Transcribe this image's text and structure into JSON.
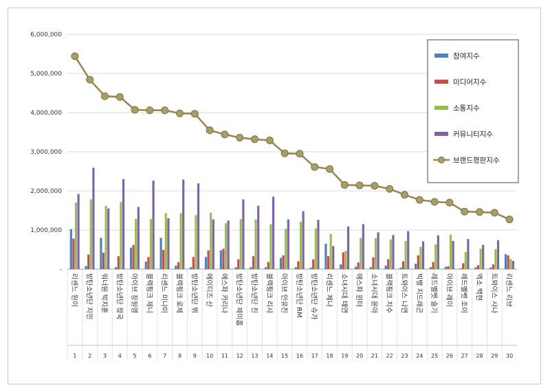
{
  "chart_data": {
    "type": "bar",
    "ylim": [
      0,
      6000000
    ],
    "yticks": [
      "-",
      "1,000,000",
      "2,000,000",
      "3,000,000",
      "4,000,000",
      "5,000,000",
      "6,000,000"
    ],
    "ytick_values": [
      0,
      1000000,
      2000000,
      3000000,
      4000000,
      5000000,
      6000000
    ],
    "grid": true,
    "legend_position": "top-right",
    "indices": [
      "1",
      "2",
      "3",
      "4",
      "5",
      "6",
      "7",
      "8",
      "9",
      "10",
      "11",
      "12",
      "13",
      "14",
      "15",
      "16",
      "17",
      "18",
      "19",
      "20",
      "21",
      "22",
      "23",
      "24",
      "25",
      "26",
      "27",
      "28",
      "29",
      "30"
    ],
    "categories": [
      "리센느 원이",
      "방탄소년단 지민",
      "워너원 박지훈",
      "방탄소년단 정국",
      "아이브 장원영",
      "블랙핑크 제니",
      "리센느 미나미",
      "블랙핑크 로제",
      "방탄소년단 뷔",
      "에이티즈 산",
      "에스파 카리나",
      "방탄소년단 제이홉",
      "방탄소년단 진",
      "블랙핑크 리사",
      "아이브 안유진",
      "방탄소년단 RM",
      "방탄소년단 슈가",
      "리센느 제나",
      "소녀시대 태연",
      "에스파 윈터",
      "소녀시대 윤아",
      "블랙핑크 지수",
      "트와이스 나연",
      "빅뱅 지드래곤",
      "레드벨벳 슬기",
      "아이브 레이",
      "레드벨벳 조이",
      "엑소 백현",
      "트와이스 사나",
      "리센느 리브"
    ],
    "series": [
      {
        "name": "참여지수",
        "color": "#4f81bd",
        "values": [
          1020000,
          80000,
          800000,
          50000,
          550000,
          190000,
          800000,
          90000,
          50000,
          310000,
          480000,
          50000,
          50000,
          50000,
          290000,
          50000,
          40000,
          650000,
          120000,
          60000,
          50000,
          90000,
          40000,
          140000,
          50000,
          60000,
          20000,
          50000,
          40000,
          380000
        ]
      },
      {
        "name": "미디어지수",
        "color": "#c0504d",
        "values": [
          780000,
          370000,
          420000,
          330000,
          620000,
          310000,
          490000,
          180000,
          310000,
          480000,
          520000,
          250000,
          330000,
          180000,
          350000,
          200000,
          250000,
          330000,
          430000,
          170000,
          300000,
          250000,
          200000,
          350000,
          180000,
          70000,
          150000,
          100000,
          120000,
          350000
        ]
      },
      {
        "name": "소통지수",
        "color": "#9bbb59",
        "values": [
          1700000,
          1780000,
          1620000,
          1720000,
          1280000,
          1280000,
          1430000,
          1430000,
          1380000,
          1440000,
          1170000,
          1280000,
          1270000,
          1150000,
          1030000,
          1210000,
          1040000,
          900000,
          470000,
          800000,
          790000,
          760000,
          720000,
          570000,
          630000,
          880000,
          440000,
          520000,
          510000,
          260000
        ]
      },
      {
        "name": "커뮤니티지수",
        "color": "#8064a2",
        "values": [
          1920000,
          2590000,
          1550000,
          2300000,
          1590000,
          2260000,
          1300000,
          2290000,
          2190000,
          1270000,
          1240000,
          1780000,
          1620000,
          1850000,
          1270000,
          1480000,
          1260000,
          590000,
          1090000,
          1150000,
          940000,
          870000,
          970000,
          710000,
          860000,
          720000,
          770000,
          620000,
          740000,
          210000
        ]
      },
      {
        "name": "브랜드평판지수",
        "color": "#948a54",
        "values": [
          5440000,
          4840000,
          4420000,
          4400000,
          4070000,
          4060000,
          4060000,
          3980000,
          3970000,
          3550000,
          3440000,
          3360000,
          3320000,
          3290000,
          2960000,
          2950000,
          2610000,
          2560000,
          2150000,
          2140000,
          2130000,
          2050000,
          1900000,
          1770000,
          1720000,
          1700000,
          1470000,
          1460000,
          1440000,
          1270000
        ]
      }
    ]
  }
}
